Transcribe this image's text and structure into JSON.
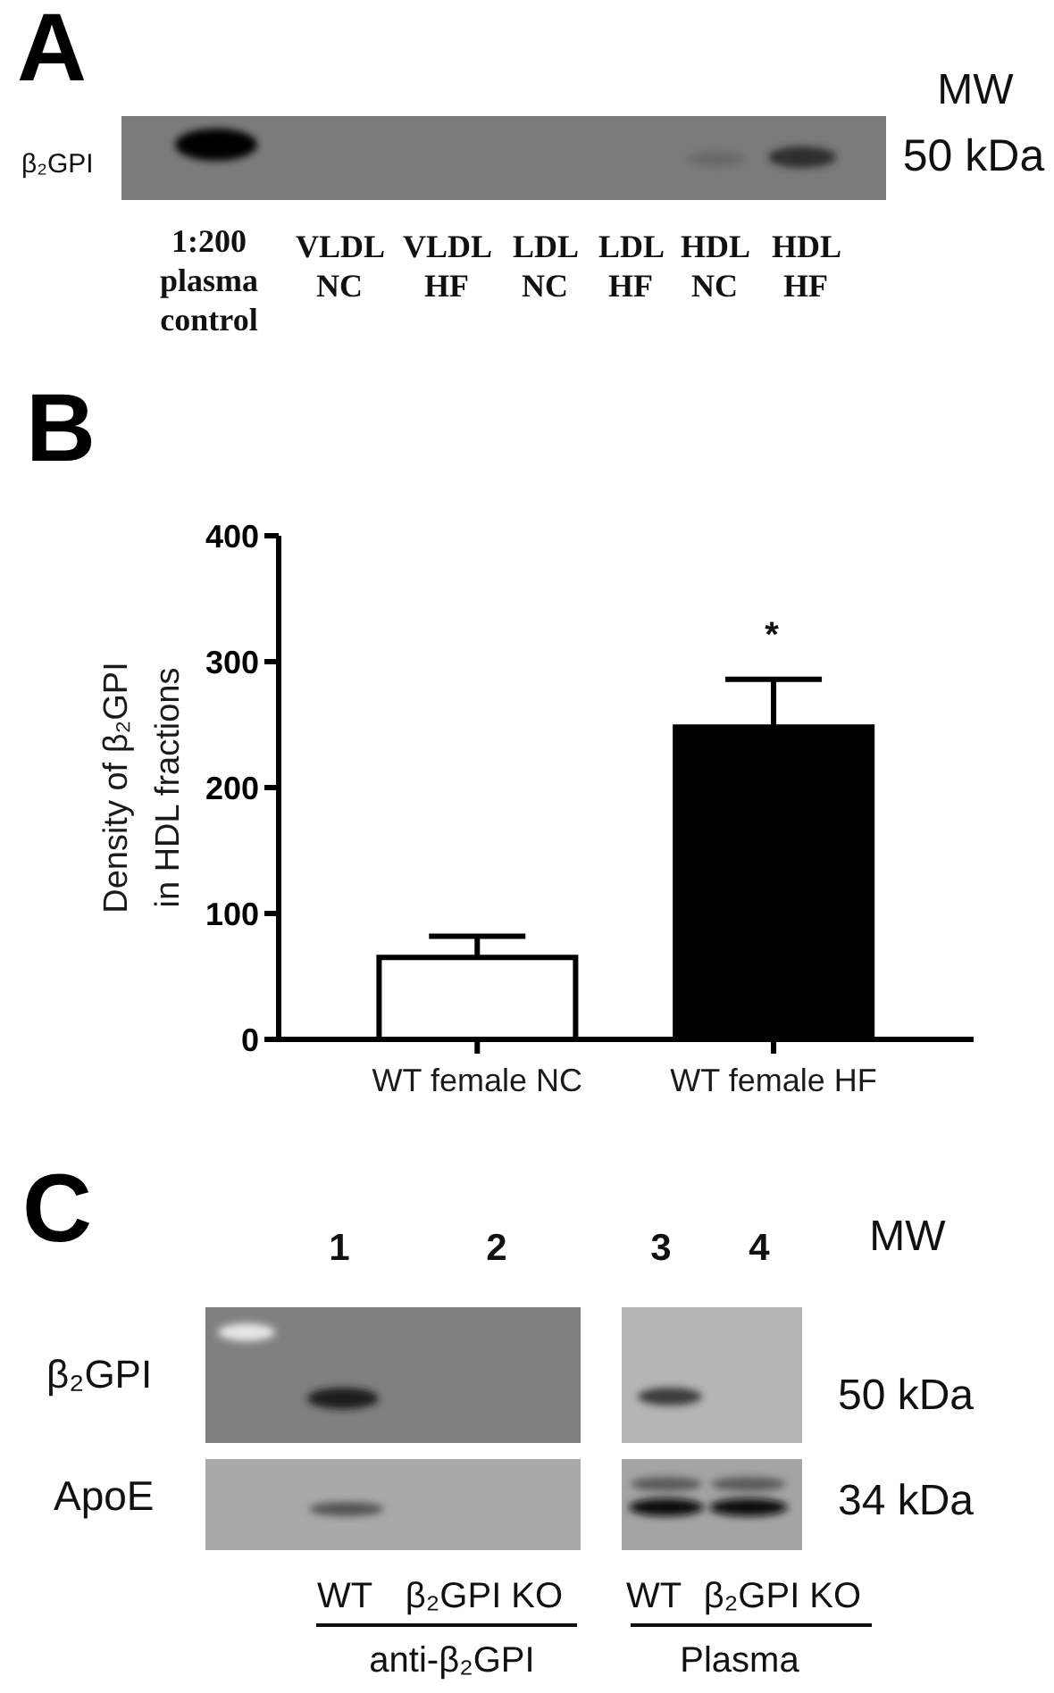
{
  "chart_data": [
    {
      "type": "other",
      "title": "A",
      "annotations": [
        "MW",
        "β₂GPI",
        "50 kDa",
        "1:200 plasma control",
        "VLDL NC",
        "VLDL HF",
        "LDL NC",
        "LDL HF",
        "HDL NC",
        "HDL HF"
      ]
    },
    {
      "type": "bar",
      "title": "B",
      "ylabel": "Density of β₂GPI in HDL fractions",
      "categories": [
        "WT female NC",
        "WT female HF"
      ],
      "values": [
        65,
        248
      ],
      "colors": [
        "#ffffff",
        "#000000"
      ],
      "errors": [
        [
          65,
          82
        ],
        [
          248,
          286
        ]
      ],
      "ylim": [
        0,
        400
      ],
      "yticks": [
        0,
        100,
        200,
        300,
        400
      ],
      "annotations": [
        "*"
      ]
    },
    {
      "type": "other",
      "title": "C",
      "annotations": [
        "1",
        "2",
        "3",
        "4",
        "MW",
        "β₂GPI",
        "ApoE",
        "50 kDa",
        "34 kDa",
        "WT",
        "β₂GPI KO",
        "WT",
        "β₂GPI KO",
        "anti-β₂GPI",
        "Plasma"
      ]
    }
  ]
}
